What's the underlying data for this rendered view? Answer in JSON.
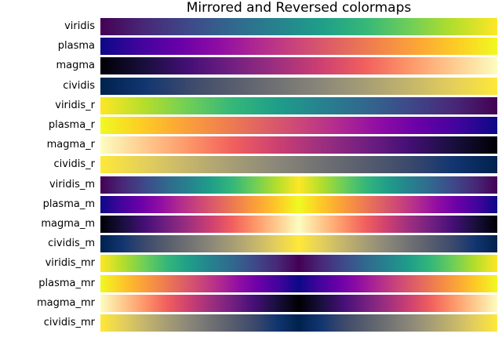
{
  "chart_data": {
    "type": "heatmap",
    "title": "Mirrored and Reversed colormaps",
    "xlabel": "",
    "ylabel": "",
    "grid": false,
    "colormaps": [
      {
        "name": "viridis",
        "mode": "normal"
      },
      {
        "name": "plasma",
        "mode": "normal"
      },
      {
        "name": "magma",
        "mode": "normal"
      },
      {
        "name": "cividis",
        "mode": "normal"
      },
      {
        "name": "viridis_r",
        "mode": "reversed"
      },
      {
        "name": "plasma_r",
        "mode": "reversed"
      },
      {
        "name": "magma_r",
        "mode": "reversed"
      },
      {
        "name": "cividis_r",
        "mode": "reversed"
      },
      {
        "name": "viridis_m",
        "mode": "mirrored"
      },
      {
        "name": "plasma_m",
        "mode": "mirrored"
      },
      {
        "name": "magma_m",
        "mode": "mirrored"
      },
      {
        "name": "cividis_m",
        "mode": "mirrored"
      },
      {
        "name": "viridis_mr",
        "mode": "mirrored-reversed"
      },
      {
        "name": "plasma_mr",
        "mode": "mirrored-reversed"
      },
      {
        "name": "magma_mr",
        "mode": "mirrored-reversed"
      },
      {
        "name": "cividis_mr",
        "mode": "mirrored-reversed"
      }
    ],
    "palettes": {
      "viridis": [
        "#440154",
        "#482878",
        "#3e4989",
        "#31688e",
        "#26828e",
        "#1f9e89",
        "#35b779",
        "#6ece58",
        "#b5de2b",
        "#fde725"
      ],
      "plasma": [
        "#0d0887",
        "#41049d",
        "#6a00a8",
        "#8f0da4",
        "#b12a90",
        "#cc4778",
        "#e16462",
        "#f2844b",
        "#fca636",
        "#fcce25",
        "#f0f921"
      ],
      "magma": [
        "#000004",
        "#180f3d",
        "#440f76",
        "#721f81",
        "#9e2f7f",
        "#cd4071",
        "#f1605d",
        "#fd9668",
        "#feca8d",
        "#fcfdbf"
      ],
      "cividis": [
        "#00224e",
        "#123570",
        "#3b496c",
        "#575d6d",
        "#707173",
        "#8a8779",
        "#a69d75",
        "#c4b56c",
        "#e4cf5b",
        "#fee838"
      ]
    }
  }
}
